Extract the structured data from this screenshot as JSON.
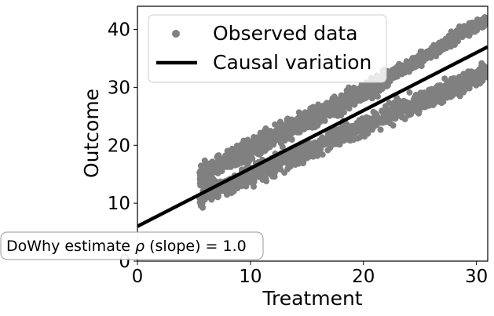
{
  "chart_data": {
    "type": "scatter",
    "xlabel": "Treatment",
    "ylabel": "Outcome",
    "xlim": [
      0,
      31
    ],
    "ylim": [
      0,
      44
    ],
    "xticks": [
      "0",
      "10",
      "20",
      "30"
    ],
    "yticks": [
      "0",
      "10",
      "20",
      "30",
      "40"
    ],
    "grid": false,
    "legend": {
      "placement": "upper-left",
      "entries": [
        "Observed data",
        "Causal variation"
      ]
    },
    "series": [
      {
        "name": "Observed data",
        "kind": "scatter",
        "color": "#808080",
        "bands": [
          {
            "x_range": [
              5.5,
              22.2
            ],
            "y_at_x_start": 14.8,
            "slope": 1.0,
            "spread": 1.4
          },
          {
            "x_range": [
              5.5,
              31.0
            ],
            "y_at_x_start": 11.0,
            "slope": 0.85,
            "spread": 1.4
          },
          {
            "x_range": [
              22.0,
              31.0
            ],
            "y_at_x_start": 31.5,
            "slope": 1.15,
            "spread": 0.9
          }
        ]
      },
      {
        "name": "Causal variation",
        "kind": "line",
        "color": "#000000",
        "x": [
          0,
          31
        ],
        "y": [
          6.0,
          37.0
        ]
      }
    ],
    "annotation": {
      "prefix": "DoWhy estimate ",
      "symbol": "ρ",
      "suffix": " (slope) = 1.0",
      "placement": "lower-left"
    }
  }
}
